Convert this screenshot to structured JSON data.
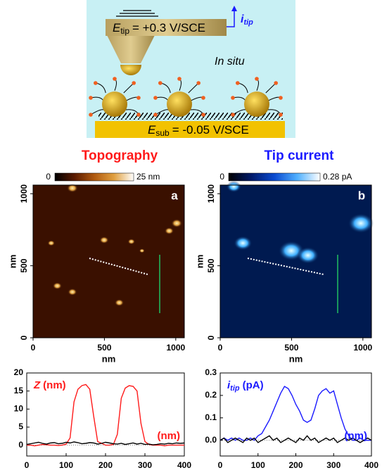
{
  "schematic": {
    "tip_potential": {
      "symbol": "E",
      "sub": "tip",
      "text": "= +0.3 V/SCE"
    },
    "tip_current": {
      "symbol": "i",
      "sub": "tip"
    },
    "condition": "In situ",
    "substrate_potential": {
      "symbol": "E",
      "sub": "sub",
      "text": "= -0.05 V/SCE"
    }
  },
  "panels": [
    {
      "title": "Topography",
      "title_color": "#ff1a1a",
      "letter": "a",
      "colorbar": {
        "min_label": "0",
        "max_label": "25 nm",
        "colors": [
          "#000000",
          "#5a1a00",
          "#b05a10",
          "#e0a040",
          "#ffffff"
        ]
      },
      "x_label": "nm",
      "y_label": "nm",
      "xlim": [
        0,
        1060
      ],
      "ylim": [
        0,
        1060
      ],
      "xticks": [
        0,
        500,
        1000
      ],
      "yticks": [
        0,
        500,
        1000
      ]
    },
    {
      "title": "Tip current",
      "title_color": "#1a1aff",
      "letter": "b",
      "colorbar": {
        "min_label": "0",
        "max_label": "0.28 pA",
        "colors": [
          "#000000",
          "#001a6a",
          "#0a4ad0",
          "#50b0ff",
          "#ffffff"
        ]
      },
      "x_label": "nm",
      "y_label": "nm",
      "xlim": [
        0,
        1060
      ],
      "ylim": [
        0,
        1060
      ],
      "xticks": [
        0,
        500,
        1000
      ],
      "yticks": [
        0,
        500,
        1000
      ]
    }
  ],
  "chart_data": [
    {
      "type": "line",
      "y_label": {
        "symbol": "Z",
        "text": "(nm)"
      },
      "x_label": "(nm)",
      "label_color": "#ff1a1a",
      "x": [
        0,
        10,
        20,
        30,
        40,
        50,
        60,
        70,
        80,
        90,
        100,
        110,
        120,
        130,
        140,
        150,
        160,
        170,
        180,
        190,
        200,
        210,
        220,
        230,
        240,
        250,
        260,
        270,
        280,
        290,
        300,
        310,
        320,
        330,
        340,
        350,
        360,
        370,
        380,
        390,
        400
      ],
      "series": [
        {
          "color": "#ff1a1a",
          "values": [
            0,
            0,
            -0.2,
            0,
            0.2,
            0.1,
            0,
            0,
            -0.1,
            0,
            0.3,
            2,
            12,
            15.5,
            16.5,
            16.8,
            15.5,
            8,
            1,
            0.5,
            0,
            0,
            0.2,
            3,
            13,
            15.8,
            16.5,
            16.3,
            15,
            6,
            1,
            0.2,
            0,
            0,
            0,
            -0.2,
            0,
            0,
            0,
            0,
            0
          ]
        },
        {
          "color": "#000000",
          "values": [
            0.2,
            0.4,
            0.6,
            0.8,
            0.5,
            0.3,
            0.6,
            0.7,
            0.4,
            0.5,
            0.8,
            0.6,
            0.9,
            0.7,
            0.4,
            0.5,
            0.7,
            0.6,
            0.3,
            0.5,
            0.8,
            0.6,
            0.4,
            0.3,
            0.5,
            0.2,
            0.4,
            0.6,
            0.3,
            0.5,
            0.2,
            0.3,
            0.1,
            0.2,
            0.4,
            0.3,
            0.5,
            0.4,
            0.6,
            0.5,
            0.6
          ]
        }
      ],
      "xlim": [
        0,
        400
      ],
      "xticks": [
        0,
        100,
        200,
        300,
        400
      ],
      "ylim": [
        -3,
        20
      ],
      "yticks": [
        0,
        5,
        10,
        15,
        20
      ]
    },
    {
      "type": "line",
      "y_label": {
        "symbol": "i",
        "sub": "tip",
        "text": "(pA)"
      },
      "x_label": "(nm)",
      "label_color": "#1a1aff",
      "x": [
        0,
        10,
        20,
        30,
        40,
        50,
        60,
        70,
        80,
        90,
        100,
        110,
        120,
        130,
        140,
        150,
        160,
        170,
        180,
        190,
        200,
        210,
        220,
        230,
        240,
        250,
        260,
        270,
        280,
        290,
        300,
        310,
        320,
        330,
        340,
        350,
        360,
        370,
        380,
        390,
        400
      ],
      "series": [
        {
          "color": "#1a1aff",
          "values": [
            0,
            0.01,
            0,
            0.01,
            0,
            0.01,
            0,
            0,
            0.01,
            0,
            0.02,
            0.03,
            0.06,
            0.09,
            0.13,
            0.17,
            0.21,
            0.24,
            0.23,
            0.2,
            0.16,
            0.13,
            0.09,
            0.08,
            0.09,
            0.14,
            0.2,
            0.22,
            0.23,
            0.21,
            0.22,
            0.16,
            0.1,
            0.05,
            0.02,
            0,
            0,
            0.01,
            0,
            0,
            0
          ]
        },
        {
          "color": "#000000",
          "values": [
            0,
            0.01,
            -0.01,
            0,
            0.01,
            0,
            -0.01,
            0.01,
            0,
            0.01,
            -0.01,
            0,
            0.01,
            0.02,
            0,
            0.01,
            -0.01,
            0,
            0.01,
            0,
            -0.01,
            0.01,
            0,
            0.02,
            0,
            0.01,
            -0.01,
            0,
            0.01,
            0,
            0.01,
            -0.01,
            0,
            0.01,
            0,
            0.01,
            0,
            -0.01,
            0,
            0.01,
            0
          ]
        }
      ],
      "xlim": [
        0,
        400
      ],
      "xticks": [
        0,
        100,
        200,
        300,
        400
      ],
      "ylim": [
        -0.07,
        0.3
      ],
      "yticks": [
        {
          "value": 0,
          "label": "0.0"
        },
        0.1,
        0.2,
        0.3
      ]
    }
  ]
}
